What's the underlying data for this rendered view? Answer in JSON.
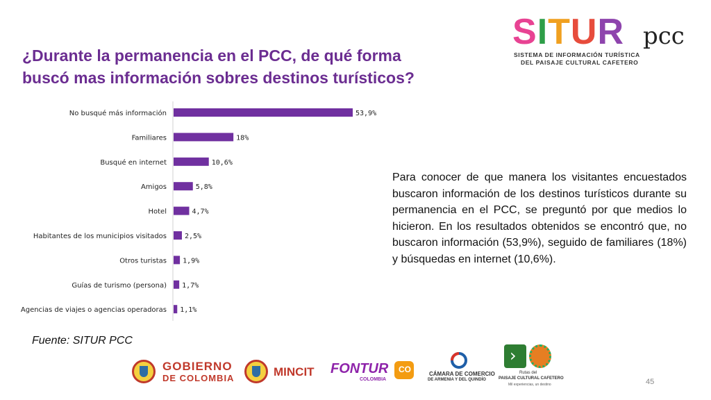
{
  "title": {
    "line1": "¿Durante la permanencia en el PCC, de qué forma",
    "line2": "buscó mas información sobres destinos turísticos?"
  },
  "chart_data": {
    "type": "bar",
    "orientation": "horizontal",
    "categories": [
      "No busqué más información",
      "Familiares",
      "Busqué en internet",
      "Amigos",
      "Hotel",
      "Habitantes de los municipios visitados",
      "Otros turistas",
      "Guías de turismo (persona)",
      "Agencias de viajes o agencias operadoras"
    ],
    "values": [
      53.9,
      18,
      10.6,
      5.8,
      4.7,
      2.5,
      1.9,
      1.7,
      1.1
    ],
    "value_labels": [
      "53,9%",
      "18%",
      "10,6%",
      "5,8%",
      "4,7%",
      "2,5%",
      "1,9%",
      "1,7%",
      "1,1%"
    ],
    "bar_color": "#7030a0",
    "grid": false,
    "legend": "none"
  },
  "description": "Para conocer de que manera los visitantes encuestados buscaron información de los destinos turísticos durante su permanencia en el PCC, se preguntó por que medios lo hicieron. En los resultados obtenidos se encontró que, no buscaron información (53,9%), seguido de familiares (18%) y búsquedas en internet (10,6%).",
  "source": "Fuente: SITUR PCC",
  "page_number": "45",
  "logos": {
    "situr": {
      "word": "SITUR",
      "suffix": "pcc",
      "subtitle1": "SISTEMA DE INFORMACIÓN TURÍSTICA",
      "subtitle2": "DEL PAISAJE CULTURAL CAFETERO"
    },
    "gobierno": {
      "line1": "GOBIERNO",
      "line2": "DE COLOMBIA"
    },
    "mincit": {
      "text": "MINCIT"
    },
    "fontur": {
      "text": "FONTUR",
      "sub": "COLOMBIA",
      "badge": "CO"
    },
    "camara": {
      "line1": "CÁMARA DE COMERCIO",
      "line2": "DE ARMENIA Y DEL QUINDÍO"
    },
    "rutas": {
      "line1": "Rutas del",
      "line2": "PAISAJE CULTURAL CAFETERO",
      "line3": "Mil experiencias, un destino"
    }
  },
  "colors": {
    "title": "#6b2d91",
    "bar": "#7030a0",
    "gobierno": "#c0392b",
    "mincit": "#c0392b",
    "fontur": "#8e24aa",
    "situr_s": "#e84393",
    "situr_i": "#2e9e48",
    "situr_t": "#f0a020",
    "situr_u": "#e74c3c",
    "situr_r": "#8e44ad"
  }
}
